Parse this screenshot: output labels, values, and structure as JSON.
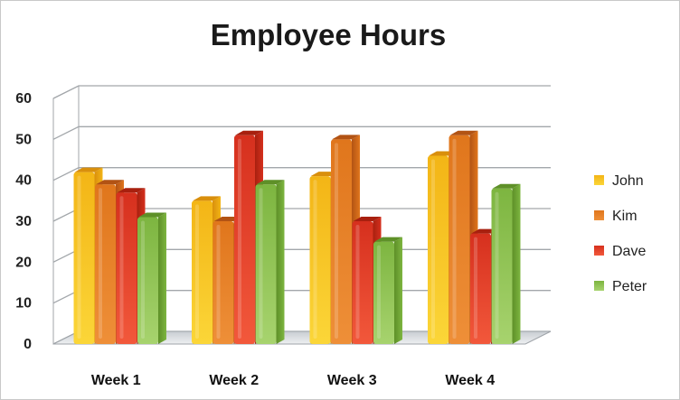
{
  "chart_data": {
    "type": "bar",
    "title": "Employee Hours",
    "xlabel": "",
    "ylabel": "",
    "categories": [
      "Week 1",
      "Week 2",
      "Week 3",
      "Week 4"
    ],
    "ylim": [
      0,
      60
    ],
    "yticks": [
      "0",
      "10",
      "20",
      "30",
      "40",
      "50",
      "60"
    ],
    "grid": true,
    "legend_position": "right",
    "series": [
      {
        "name": "John",
        "values": [
          42,
          35,
          41,
          46
        ],
        "color": "#f3b516",
        "color_dark": "#d98f0c",
        "color_light": "#fbd638"
      },
      {
        "name": "Kim",
        "values": [
          39,
          30,
          50,
          51
        ],
        "color": "#e0761c",
        "color_dark": "#b25314",
        "color_light": "#ee8f38"
      },
      {
        "name": "Dave",
        "values": [
          37,
          51,
          30,
          27
        ],
        "color": "#d6301e",
        "color_dark": "#a8200f",
        "color_light": "#f2583b"
      },
      {
        "name": "Peter",
        "values": [
          31,
          39,
          25,
          38
        ],
        "color": "#7db540",
        "color_dark": "#5e9028",
        "color_light": "#a7d36e"
      }
    ]
  }
}
